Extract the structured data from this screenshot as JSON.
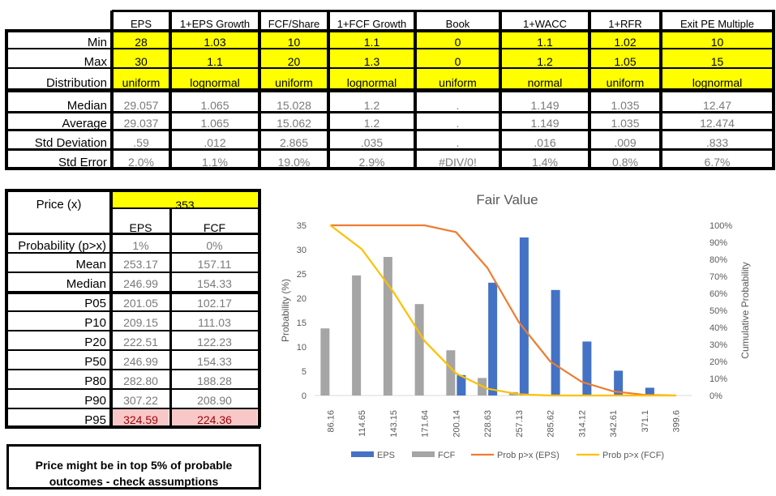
{
  "top_table": {
    "columns": [
      "EPS",
      "1+EPS Growth",
      "FCF/Share",
      "1+FCF Growth",
      "Book",
      "1+WACC",
      "1+RFR",
      "Exit PE Multiple"
    ],
    "rows": [
      {
        "label": "Min",
        "values": [
          "28",
          "1.03",
          "10",
          "1.1",
          "0",
          "1.1",
          "1.02",
          "10"
        ],
        "style": "input"
      },
      {
        "label": "Max",
        "values": [
          "30",
          "1.1",
          "20",
          "1.3",
          "0",
          "1.2",
          "1.05",
          "15"
        ],
        "style": "input"
      },
      {
        "label": "Distribution",
        "values": [
          "uniform",
          "lognormal",
          "uniform",
          "lognormal",
          "uniform",
          "normal",
          "uniform",
          "lognormal"
        ],
        "style": "input"
      },
      {
        "label": "Median",
        "values": [
          "29.057",
          "1.065",
          "15.028",
          "1.2",
          ".",
          "1.149",
          "1.035",
          "12.47"
        ],
        "style": "output"
      },
      {
        "label": "Average",
        "values": [
          "29.037",
          "1.065",
          "15.062",
          "1.2",
          ".",
          "1.149",
          "1.035",
          "12.474"
        ],
        "style": "output"
      },
      {
        "label": "Std Deviation",
        "values": [
          ".59",
          ".012",
          "2.865",
          ".035",
          ".",
          ".016",
          ".009",
          ".833"
        ],
        "style": "output"
      },
      {
        "label": "Std Error",
        "values": [
          "2.0%",
          "1.1%",
          "19.0%",
          "2.9%",
          "#DIV/0!",
          "1.4%",
          "0.8%",
          "6.7%"
        ],
        "style": "output"
      }
    ]
  },
  "price_table": {
    "price_label": "Price (x)",
    "price_value": "353",
    "columns": [
      "EPS",
      "FCF"
    ],
    "rows": [
      {
        "label": "Probability (p>x)",
        "values": [
          "1%",
          "0%"
        ],
        "highlight": false
      },
      {
        "label": "Mean",
        "values": [
          "253.17",
          "157.11"
        ],
        "highlight": false
      },
      {
        "label": "Median",
        "values": [
          "246.99",
          "154.33"
        ],
        "highlight": false
      },
      {
        "label": "P05",
        "values": [
          "201.05",
          "102.17"
        ],
        "highlight": false
      },
      {
        "label": "P10",
        "values": [
          "209.15",
          "111.03"
        ],
        "highlight": false
      },
      {
        "label": "P20",
        "values": [
          "222.51",
          "122.23"
        ],
        "highlight": false
      },
      {
        "label": "P50",
        "values": [
          "246.99",
          "154.33"
        ],
        "highlight": false
      },
      {
        "label": "P80",
        "values": [
          "282.80",
          "188.28"
        ],
        "highlight": false
      },
      {
        "label": "P90",
        "values": [
          "307.22",
          "208.90"
        ],
        "highlight": false
      },
      {
        "label": "P95",
        "values": [
          "324.59",
          "224.36"
        ],
        "highlight": true
      }
    ]
  },
  "message": {
    "line1": "Price might be in top 5% of probable",
    "line2": "outcomes - check assumptions"
  },
  "colors": {
    "input_fill": "#ffff00",
    "highlight_fill": "#f8c8c8",
    "eps_bar": "#4472c4",
    "fcf_bar": "#a5a5a5",
    "eps_line": "#ed7d31",
    "fcf_line": "#ffc000"
  },
  "chart_data": {
    "type": "bar",
    "title": "Fair Value",
    "ylabel": "Probability (%)",
    "y2label": "Cumulative Probability",
    "categories": [
      "86.16",
      "114.65",
      "143.15",
      "171.64",
      "200.14",
      "228.63",
      "257.13",
      "285.62",
      "314.12",
      "342.61",
      "371.1",
      "399.6"
    ],
    "ylim": [
      0,
      35
    ],
    "yticks": [
      "0",
      "5",
      "10",
      "15",
      "20",
      "25",
      "30",
      "35"
    ],
    "y2lim": [
      0,
      100
    ],
    "y2ticks": [
      "0%",
      "10%",
      "20%",
      "30%",
      "40%",
      "50%",
      "60%",
      "70%",
      "80%",
      "90%",
      "100%"
    ],
    "series": [
      {
        "name": "EPS",
        "kind": "bar",
        "values": [
          0,
          0,
          0,
          0,
          4.2,
          23.2,
          32.5,
          21.7,
          11.1,
          5.1,
          1.6,
          0
        ]
      },
      {
        "name": "FCF",
        "kind": "bar",
        "values": [
          13.8,
          24.7,
          28.5,
          18.8,
          9.3,
          3.6,
          0.7,
          0,
          0,
          0,
          0,
          0
        ]
      },
      {
        "name": "Prob p>x (EPS)",
        "kind": "line",
        "axis": "y2",
        "values": [
          100,
          100,
          100,
          100,
          96,
          75,
          43,
          20,
          8,
          2.5,
          0.4,
          0
        ]
      },
      {
        "name": "Prob p>x (FCF)",
        "kind": "line",
        "axis": "y2",
        "values": [
          100,
          86,
          61,
          32,
          13,
          4,
          0.7,
          0,
          0,
          0,
          0,
          0
        ]
      }
    ],
    "legend": "bottom",
    "grid": false
  }
}
